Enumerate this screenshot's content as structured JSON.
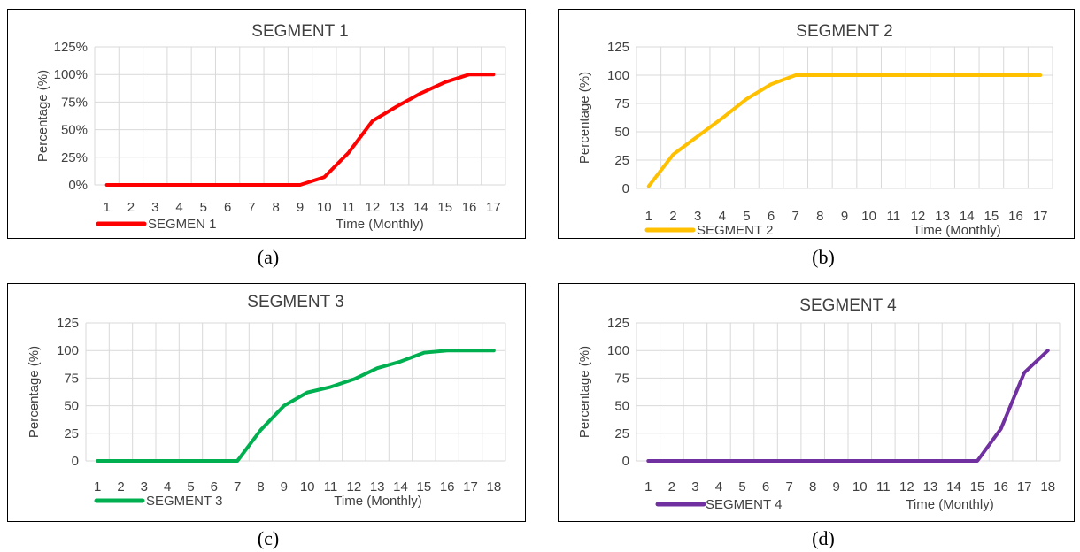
{
  "captions": [
    "(a)",
    "(b)",
    "(c)",
    "(d)"
  ],
  "chart_data": [
    {
      "type": "line",
      "title": "SEGMENT 1",
      "xlabel": "Time (Monthly)",
      "ylabel": "Percentage (%)",
      "ylim": [
        0,
        125
      ],
      "yticks": [
        "0%",
        "25%",
        "50%",
        "75%",
        "100%",
        "125%"
      ],
      "categories": [
        "1",
        "2",
        "3",
        "4",
        "5",
        "6",
        "7",
        "8",
        "9",
        "10",
        "11",
        "12",
        "13",
        "14",
        "15",
        "16",
        "17"
      ],
      "series": [
        {
          "name": "SEGMEN 1",
          "color": "#ff0000",
          "values": [
            0,
            0,
            0,
            0,
            0,
            0,
            0,
            0,
            0,
            7,
            29,
            58,
            71,
            83,
            93,
            100,
            100
          ]
        }
      ],
      "grid": true,
      "legend": "bottom-left"
    },
    {
      "type": "line",
      "title": "SEGMENT 2",
      "xlabel": "Time (Monthly)",
      "ylabel": "Percentage (%)",
      "ylim": [
        0,
        125
      ],
      "yticks": [
        "0",
        "25",
        "50",
        "75",
        "100",
        "125"
      ],
      "categories": [
        "1",
        "2",
        "3",
        "4",
        "5",
        "6",
        "7",
        "8",
        "9",
        "10",
        "11",
        "12",
        "13",
        "14",
        "15",
        "16",
        "17"
      ],
      "series": [
        {
          "name": "SEGMENT 2",
          "color": "#ffc000",
          "values": [
            2,
            30,
            46,
            62,
            79,
            92,
            100,
            100,
            100,
            100,
            100,
            100,
            100,
            100,
            100,
            100,
            100
          ]
        }
      ],
      "grid": true,
      "legend": "bottom-left"
    },
    {
      "type": "line",
      "title": "SEGMENT 3",
      "xlabel": "Time (Monthly)",
      "ylabel": "Percentage (%)",
      "ylim": [
        0,
        125
      ],
      "yticks": [
        "0",
        "25",
        "50",
        "75",
        "100",
        "125"
      ],
      "categories": [
        "1",
        "2",
        "3",
        "4",
        "5",
        "6",
        "7",
        "8",
        "9",
        "10",
        "11",
        "12",
        "13",
        "14",
        "15",
        "16",
        "17",
        "18"
      ],
      "series": [
        {
          "name": "SEGMENT 3",
          "color": "#00b050",
          "values": [
            0,
            0,
            0,
            0,
            0,
            0,
            0,
            28,
            50,
            62,
            67,
            74,
            84,
            90,
            98,
            100,
            100,
            100
          ]
        }
      ],
      "grid": true,
      "legend": "bottom-left"
    },
    {
      "type": "line",
      "title": "SEGMENT 4",
      "xlabel": "Time (Monthly)",
      "ylabel": "Percentage (%)",
      "ylim": [
        0,
        125
      ],
      "yticks": [
        "0",
        "25",
        "50",
        "75",
        "100",
        "125"
      ],
      "categories": [
        "1",
        "2",
        "3",
        "4",
        "5",
        "6",
        "7",
        "8",
        "9",
        "10",
        "11",
        "12",
        "13",
        "14",
        "15",
        "16",
        "17",
        "18"
      ],
      "series": [
        {
          "name": "SEGMENT 4",
          "color": "#7030a0",
          "values": [
            0,
            0,
            0,
            0,
            0,
            0,
            0,
            0,
            0,
            0,
            0,
            0,
            0,
            0,
            0,
            29,
            80,
            100
          ]
        }
      ],
      "grid": true,
      "legend": "bottom-left"
    }
  ]
}
